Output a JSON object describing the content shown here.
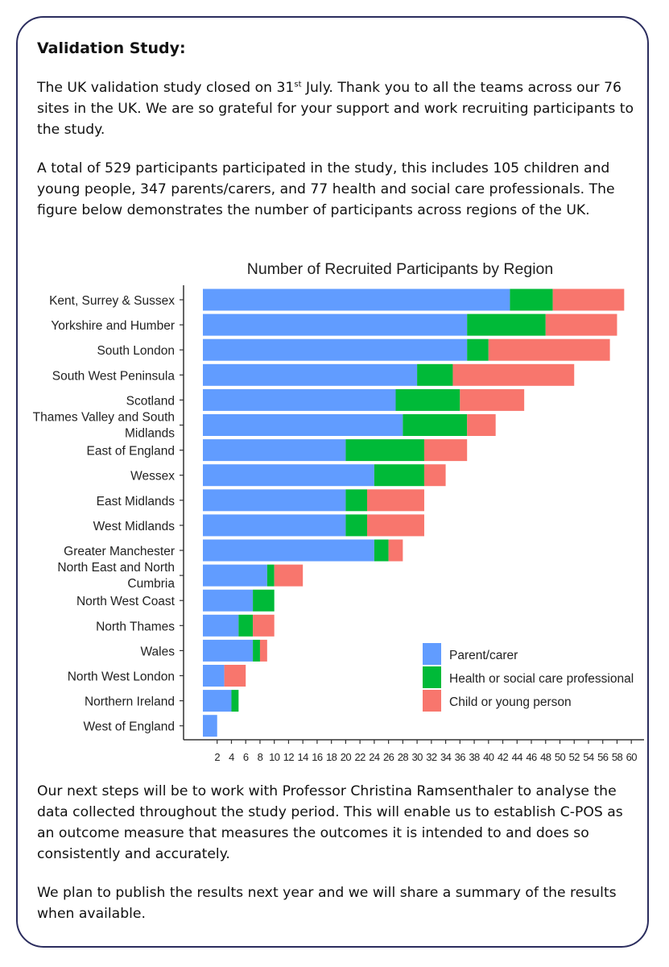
{
  "doc": {
    "heading": "Validation Study:",
    "p1_pre": "The UK validation study closed on 31",
    "p1_sup": "st",
    "p1_post": " July. Thank you to all the teams across our 76 sites in the UK. We are so grateful for your support and work recruiting participants to the study.",
    "p2": "A total of 529 participants participated in the study, this includes 105 children and young people, 347 parents/carers, and 77 health and social care professionals. The figure below demonstrates the number of participants across regions of the UK.",
    "p3": "Our next steps will be to work with Professor Christina Ramsenthaler to analyse the data collected throughout the study period. This will enable us to establish C-POS as an outcome measure that measures the outcomes it is intended to and does so consistently and accurately.",
    "p4": "We plan to publish the results next year and we will share a summary of the results when available."
  },
  "chart_data": {
    "type": "bar",
    "orientation": "horizontal",
    "stacked": true,
    "title": "Number of Recruited Participants by Region",
    "xlabel": "",
    "ylabel": "",
    "xlim": [
      0,
      60
    ],
    "xticks": [
      2,
      4,
      6,
      8,
      10,
      12,
      14,
      16,
      18,
      20,
      22,
      24,
      26,
      28,
      30,
      32,
      34,
      36,
      38,
      40,
      42,
      44,
      46,
      48,
      50,
      52,
      54,
      56,
      58,
      60
    ],
    "categories": [
      [
        "Kent, Surrey & Sussex"
      ],
      [
        "Yorkshire and Humber"
      ],
      [
        "South London"
      ],
      [
        "South West Peninsula"
      ],
      [
        "Scotland"
      ],
      [
        "Thames Valley and South",
        "Midlands"
      ],
      [
        "East of England"
      ],
      [
        "Wessex"
      ],
      [
        "East Midlands"
      ],
      [
        "West Midlands"
      ],
      [
        "Greater Manchester"
      ],
      [
        "North East and North",
        "Cumbria"
      ],
      [
        "North West Coast"
      ],
      [
        "North Thames"
      ],
      [
        "Wales"
      ],
      [
        "North West London"
      ],
      [
        "Northern Ireland"
      ],
      [
        "West of England"
      ]
    ],
    "series": [
      {
        "name": "Parent/carer",
        "color": "#619cff",
        "values": [
          43,
          37,
          37,
          30,
          27,
          28,
          20,
          24,
          20,
          20,
          24,
          9,
          7,
          5,
          7,
          3,
          4,
          2
        ]
      },
      {
        "name": "Health or social care professional",
        "color": "#00ba38",
        "values": [
          6,
          11,
          3,
          5,
          9,
          9,
          11,
          7,
          3,
          3,
          2,
          1,
          3,
          2,
          1,
          0,
          1,
          0
        ]
      },
      {
        "name": "Child or young person",
        "color": "#f8766d",
        "values": [
          10,
          10,
          17,
          17,
          9,
          4,
          6,
          3,
          8,
          8,
          2,
          4,
          0,
          3,
          1,
          3,
          0,
          0
        ]
      }
    ],
    "legend": "bottom-right"
  }
}
